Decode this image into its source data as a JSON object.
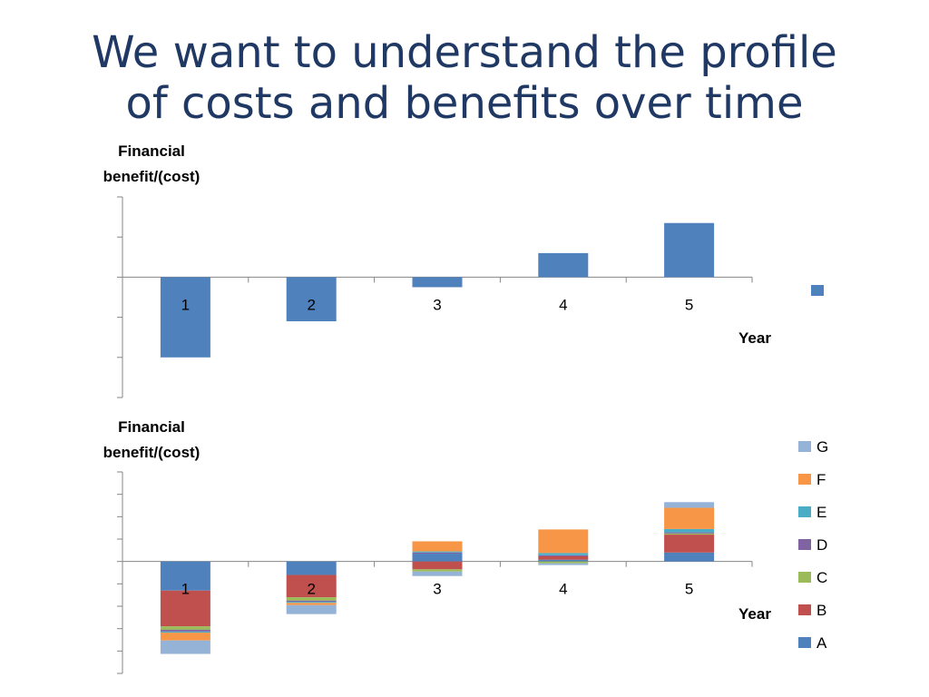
{
  "title": {
    "line1": "We want to understand the profile",
    "line2": "of costs and benefits over time"
  },
  "colors": {
    "title": "#1f3864",
    "axis": "#868686",
    "single_series": "#4f81bd"
  },
  "chart_data": [
    {
      "type": "bar",
      "ylabel_line1": "Financial",
      "ylabel_line2": "benefit/(cost)",
      "xlabel": "Year",
      "categories": [
        "1",
        "2",
        "3",
        "4",
        "5"
      ],
      "ylim": [
        -3,
        2
      ],
      "grid": false,
      "legend": "right",
      "series": [
        {
          "color": "#4f81bd",
          "values": [
            -2.0,
            -1.1,
            -0.25,
            0.6,
            1.35
          ]
        }
      ]
    },
    {
      "type": "bar",
      "stacked": true,
      "ylabel_line1": "Financial",
      "ylabel_line2": "benefit/(cost)",
      "xlabel": "Year",
      "categories": [
        "1",
        "2",
        "3",
        "4",
        "5"
      ],
      "ylim": [
        -5,
        4
      ],
      "grid": false,
      "legend": "right",
      "series": [
        {
          "name": "A",
          "color": "#4f81bd",
          "values": [
            -1.3,
            -0.6,
            0.35,
            0.08,
            0.4
          ]
        },
        {
          "name": "B",
          "color": "#c0504d",
          "values": [
            -1.6,
            -1.0,
            -0.35,
            0.15,
            0.8
          ]
        },
        {
          "name": "C",
          "color": "#9bbb59",
          "values": [
            -0.15,
            -0.15,
            -0.1,
            -0.08,
            0.05
          ]
        },
        {
          "name": "D",
          "color": "#8064a2",
          "values": [
            -0.08,
            -0.05,
            0.05,
            0.05,
            0.05
          ]
        },
        {
          "name": "E",
          "color": "#4bacc6",
          "values": [
            -0.05,
            -0.05,
            0.05,
            0.1,
            0.15
          ]
        },
        {
          "name": "F",
          "color": "#f79646",
          "values": [
            -0.35,
            -0.1,
            0.45,
            1.05,
            0.95
          ]
        },
        {
          "name": "G",
          "color": "#95b3d7",
          "values": [
            -0.6,
            -0.4,
            -0.2,
            -0.08,
            0.25
          ]
        }
      ]
    }
  ]
}
